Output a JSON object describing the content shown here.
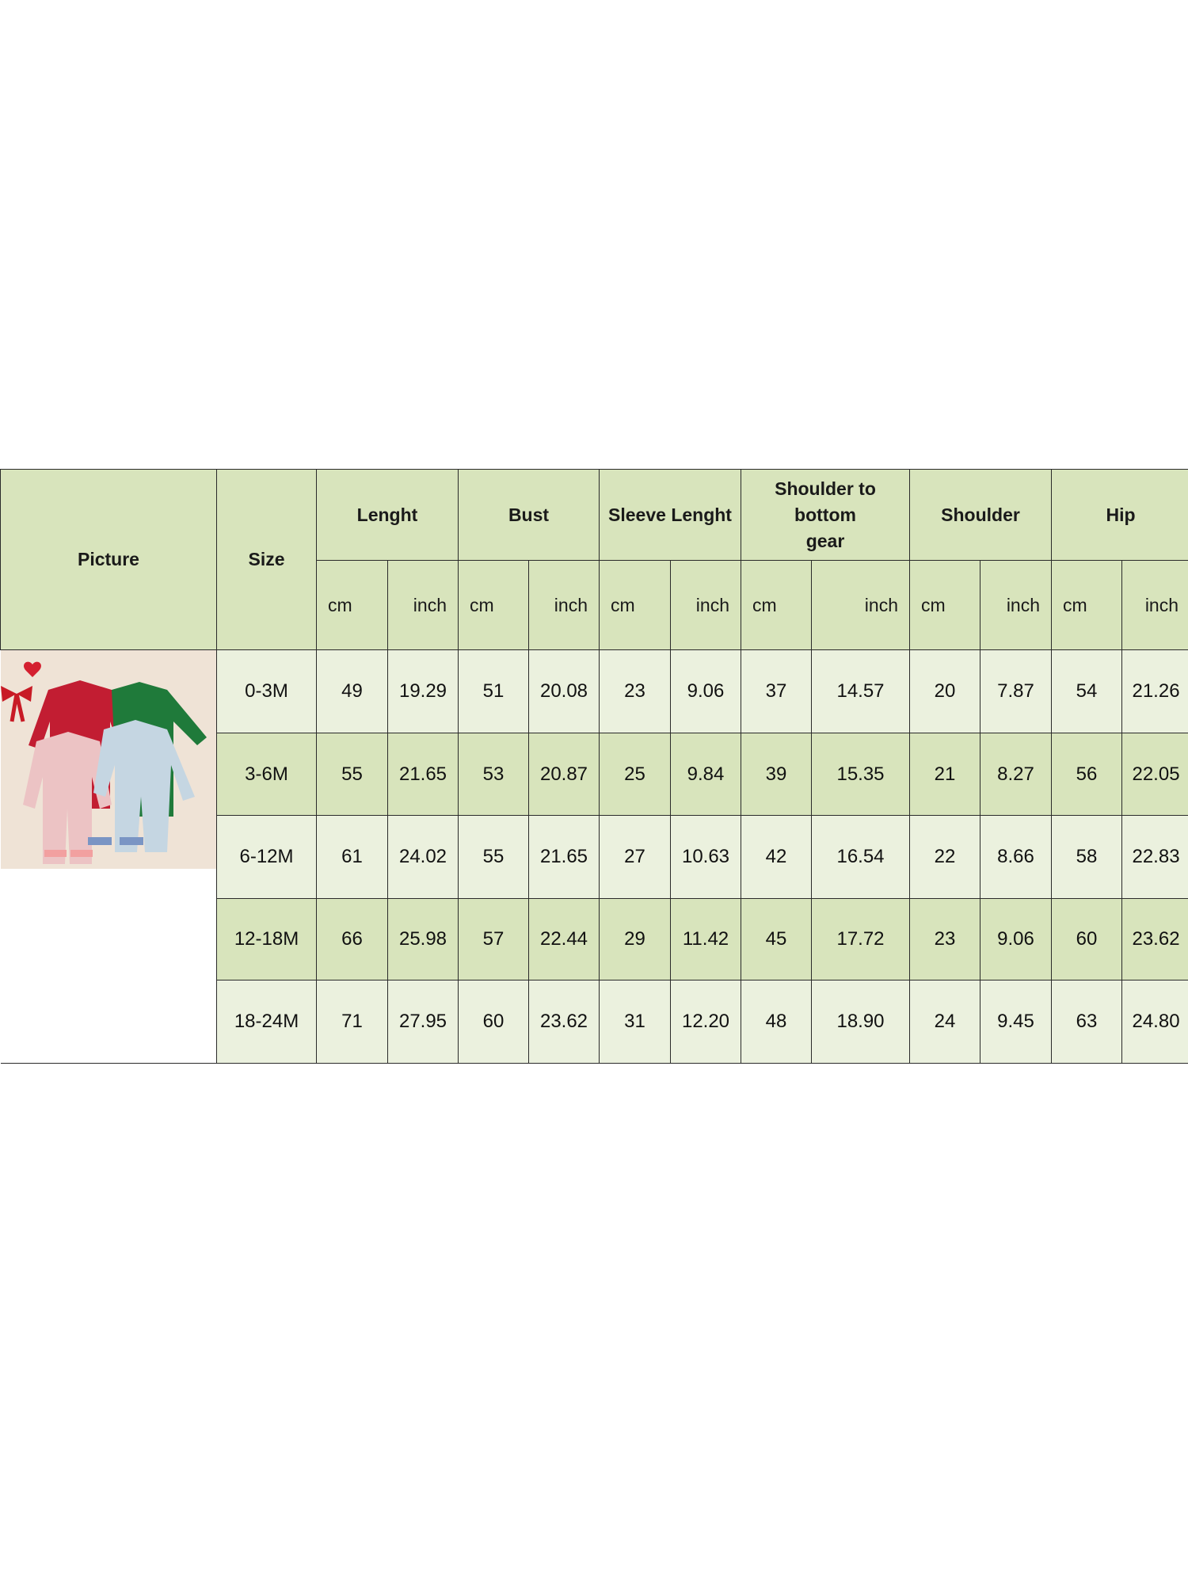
{
  "table": {
    "picture_header": "Picture",
    "size_header": "Size",
    "groups": [
      "Lenght",
      "Bust",
      "Sleeve Lenght",
      "Shoulder to bottom gear",
      "Shoulder",
      "Hip"
    ],
    "units": [
      "cm",
      "inch"
    ],
    "rows": [
      {
        "size": "0-3M",
        "values": [
          "49",
          "19.29",
          "51",
          "20.08",
          "23",
          "9.06",
          "37",
          "14.57",
          "20",
          "7.87",
          "54",
          "21.26"
        ]
      },
      {
        "size": "3-6M",
        "values": [
          "55",
          "21.65",
          "53",
          "20.87",
          "25",
          "9.84",
          "39",
          "15.35",
          "21",
          "8.27",
          "56",
          "22.05"
        ]
      },
      {
        "size": "6-12M",
        "values": [
          "61",
          "24.02",
          "55",
          "21.65",
          "27",
          "10.63",
          "42",
          "16.54",
          "22",
          "8.66",
          "58",
          "22.83"
        ]
      },
      {
        "size": "12-18M",
        "values": [
          "66",
          "25.98",
          "57",
          "22.44",
          "29",
          "11.42",
          "45",
          "17.72",
          "23",
          "9.06",
          "60",
          "23.62"
        ]
      },
      {
        "size": "18-24M",
        "values": [
          "71",
          "27.95",
          "60",
          "23.62",
          "31",
          "12.20",
          "48",
          "18.90",
          "24",
          "9.45",
          "63",
          "24.80"
        ]
      }
    ]
  },
  "colors": {
    "header": "#d8e4bc",
    "row_light": "#ebf1de",
    "row_green": "#d8e4bc",
    "border": "#2a2a2a"
  },
  "picture": {
    "subject": "four satin baby pajama rompers: red, green, pink, light blue"
  }
}
